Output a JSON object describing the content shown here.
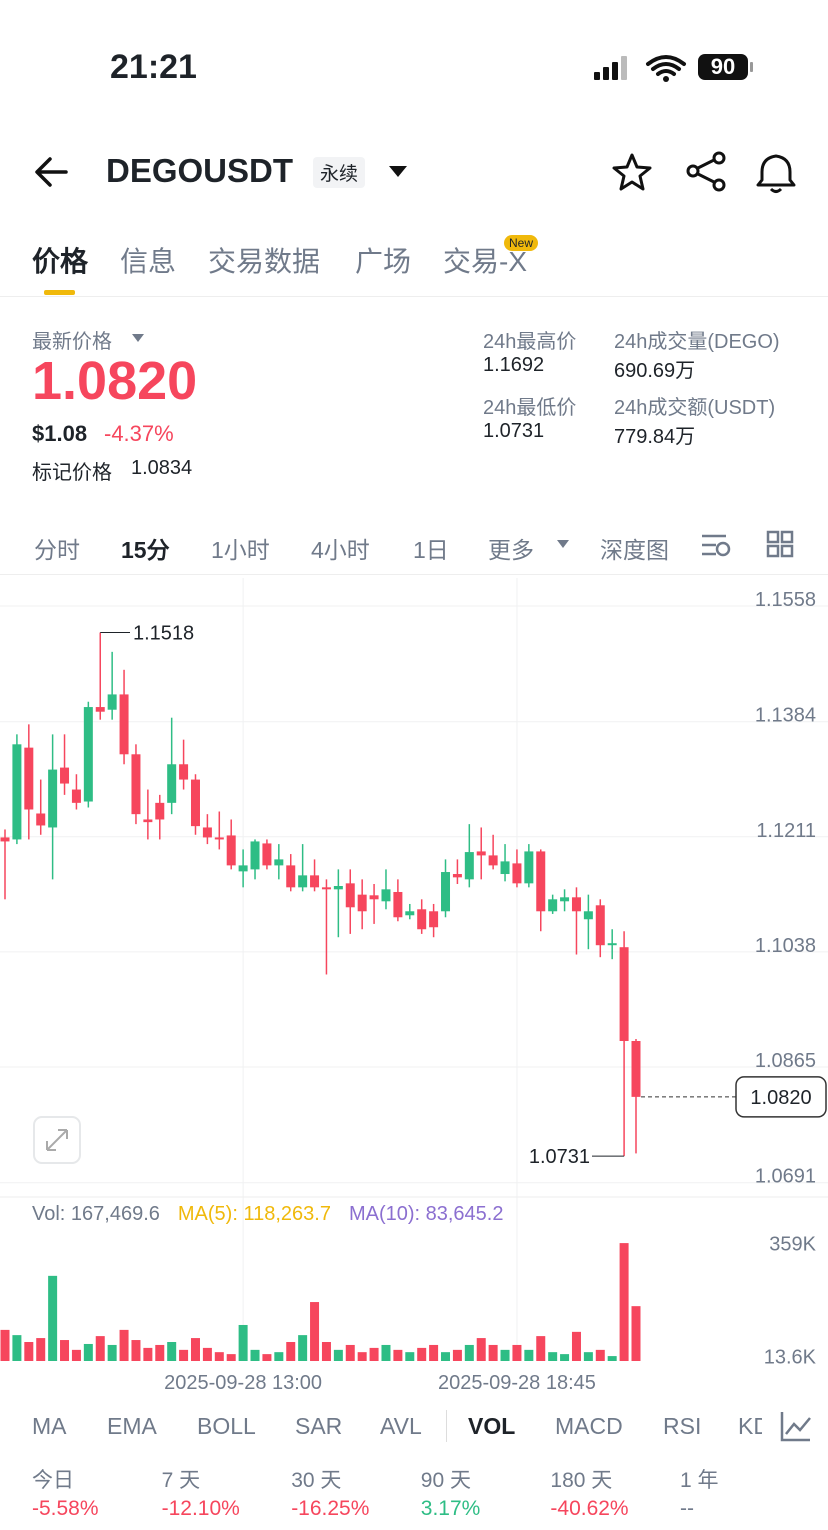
{
  "status": {
    "time": "21:21",
    "battery": "90"
  },
  "header": {
    "symbol": "DEGOUSDT",
    "badge": "永续"
  },
  "tabs": {
    "items": [
      "价格",
      "信息",
      "交易数据",
      "广场",
      "交易-X"
    ],
    "active": 0,
    "new_badge": "New"
  },
  "price": {
    "label": "最新价格",
    "last": "1.0820",
    "usd": "$1.08",
    "change": "-4.37%",
    "mark_label": "标记价格",
    "mark": "1.0834"
  },
  "stats": [
    {
      "label": "24h最高价",
      "value": "1.1692"
    },
    {
      "label": "24h成交量(DEGO)",
      "value": "690.69万"
    },
    {
      "label": "24h最低价",
      "value": "1.0731"
    },
    {
      "label": "24h成交额(USDT)",
      "value": "779.84万"
    }
  ],
  "intervals": {
    "items": [
      "分时",
      "15分",
      "1小时",
      "4小时",
      "1日",
      "更多",
      "深度图"
    ],
    "active": 1
  },
  "chart_data": {
    "type": "candlestick",
    "up_color": "#2ebd85",
    "down_color": "#f6465d",
    "categories": [
      null,
      null,
      null,
      null,
      null,
      null,
      null,
      null,
      null,
      null,
      null,
      null,
      null,
      null,
      null,
      null,
      null,
      null,
      null,
      null,
      "2025-09-28 13:00",
      null,
      null,
      null,
      null,
      null,
      null,
      null,
      null,
      null,
      null,
      null,
      null,
      null,
      null,
      null,
      null,
      null,
      null,
      null,
      null,
      null,
      null,
      "2025-09-28 18:45",
      null,
      null,
      null,
      null,
      null,
      null,
      null,
      null,
      null,
      null
    ],
    "open": [
      1.121,
      1.1207,
      1.1345,
      1.1246,
      1.1225,
      1.1315,
      1.1282,
      1.1264,
      1.1406,
      1.1402,
      1.1425,
      1.1335,
      1.1237,
      1.1262,
      1.1262,
      1.132,
      1.1297,
      1.1225,
      1.121,
      1.1213,
      1.1159,
      1.1162,
      1.1201,
      1.1168,
      1.1168,
      1.1135,
      1.1153,
      1.1135,
      1.1132,
      1.1141,
      1.1124,
      1.1123,
      1.1114,
      1.1128,
      1.1093,
      1.1102,
      1.1099,
      1.1099,
      1.1155,
      1.1147,
      1.1189,
      1.1183,
      1.1155,
      1.1171,
      1.1141,
      1.1189,
      1.1099,
      1.1114,
      1.112,
      1.1087,
      1.1108,
      1.1048,
      1.1045,
      1.0904
    ],
    "high": [
      1.1222,
      1.1365,
      1.138,
      1.1297,
      1.1365,
      1.1365,
      1.1305,
      1.1414,
      1.1518,
      1.1489,
      1.1462,
      1.135,
      1.1282,
      1.1274,
      1.139,
      1.1357,
      1.1305,
      1.1245,
      1.1249,
      1.1237,
      1.1192,
      1.1207,
      1.1207,
      1.12,
      1.1185,
      1.12,
      1.1177,
      1.1147,
      1.1162,
      1.1162,
      1.1147,
      1.114,
      1.1162,
      1.1147,
      1.111,
      1.1117,
      1.111,
      1.1177,
      1.1177,
      1.123,
      1.1225,
      1.1214,
      1.12,
      1.1192,
      1.12,
      1.1192,
      1.1124,
      1.1132,
      1.1135,
      1.1124,
      1.1117,
      1.1072,
      1.1069,
      1.0907
    ],
    "low": [
      1.1117,
      1.12,
      1.1207,
      1.1214,
      1.1147,
      1.1274,
      1.1252,
      1.1255,
      1.1387,
      1.1387,
      1.132,
      1.123,
      1.1207,
      1.1207,
      1.1245,
      1.1282,
      1.1214,
      1.12,
      1.1192,
      1.1162,
      1.1135,
      1.1147,
      1.1162,
      1.1147,
      1.1129,
      1.1129,
      1.1129,
      1.1004,
      1.106,
      1.1065,
      1.1072,
      1.108,
      1.1102,
      1.1084,
      1.1087,
      1.1065,
      1.106,
      1.109,
      1.114,
      1.1135,
      1.1147,
      1.1162,
      1.1144,
      1.1135,
      1.1135,
      1.1069,
      1.1095,
      1.1099,
      1.1034,
      1.1042,
      1.103,
      1.1027,
      1.0731,
      1.0735
    ],
    "close": [
      1.1204,
      1.135,
      1.1252,
      1.1228,
      1.1312,
      1.1291,
      1.1262,
      1.1406,
      1.1399,
      1.1425,
      1.1335,
      1.1245,
      1.1233,
      1.1237,
      1.132,
      1.1297,
      1.1227,
      1.121,
      1.1207,
      1.1168,
      1.1168,
      1.1204,
      1.1168,
      1.1177,
      1.1135,
      1.1153,
      1.1135,
      1.1132,
      1.1137,
      1.1105,
      1.1099,
      1.1117,
      1.1132,
      1.109,
      1.1099,
      1.1072,
      1.1075,
      1.1158,
      1.115,
      1.1188,
      1.1183,
      1.1168,
      1.1174,
      1.1141,
      1.1189,
      1.1099,
      1.1117,
      1.112,
      1.1099,
      1.1099,
      1.1048,
      1.1051,
      1.0904,
      1.082
    ],
    "ylim": [
      1.0671,
      1.16
    ],
    "yticks": [
      1.1558,
      1.1384,
      1.1211,
      1.1038,
      1.0865,
      1.0691
    ],
    "grid": true,
    "max_label": 1.1518,
    "min_label": 1.0731,
    "last_price": {
      "value": 1.082,
      "label": "1.0820"
    },
    "volume": {
      "values": [
        95000,
        79000,
        58000,
        70000,
        260000,
        64000,
        34000,
        52000,
        76000,
        49000,
        95000,
        64000,
        40000,
        49000,
        58000,
        34000,
        70000,
        40000,
        27000,
        21000,
        110000,
        34000,
        21000,
        27000,
        58000,
        79000,
        180000,
        58000,
        34000,
        49000,
        27000,
        40000,
        49000,
        34000,
        27000,
        40000,
        49000,
        27000,
        34000,
        49000,
        70000,
        49000,
        34000,
        49000,
        34000,
        76000,
        27000,
        21000,
        89000,
        27000,
        34000,
        15000,
        360000,
        167470
      ],
      "ylim": [
        0,
        400000
      ],
      "yticks": [
        {
          "value": 359000,
          "label": "359K"
        },
        {
          "value": 13600,
          "label": "13.6K"
        }
      ],
      "legend": [
        {
          "text": "Vol: 167,469.6",
          "color": "#707a8a"
        },
        {
          "text": "MA(5): 118,263.7",
          "color": "#f0b90b"
        },
        {
          "text": "MA(10): 83,645.2",
          "color": "#8b6fd0"
        }
      ]
    }
  },
  "indicators": {
    "items": [
      "MA",
      "EMA",
      "BOLL",
      "SAR",
      "AVL",
      "VOL",
      "MACD",
      "RSI",
      "KD"
    ],
    "active": 5
  },
  "performance": [
    {
      "label": "今日",
      "value": "-5.58%",
      "color": "#f6465d"
    },
    {
      "label": "7 天",
      "value": "-12.10%",
      "color": "#f6465d"
    },
    {
      "label": "30 天",
      "value": "-16.25%",
      "color": "#f6465d"
    },
    {
      "label": "90 天",
      "value": "3.17%",
      "color": "#2ebd85"
    },
    {
      "label": "180 天",
      "value": "-40.62%",
      "color": "#f6465d"
    },
    {
      "label": "1 年",
      "value": "--",
      "color": "#707a8a"
    }
  ]
}
